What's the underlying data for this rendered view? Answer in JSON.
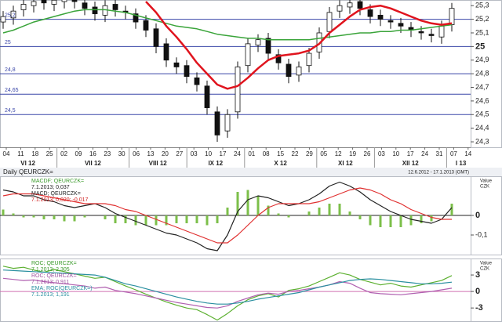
{
  "header": {
    "title": "Daily QEURCZK=",
    "range": "12.6.2012 - 17.1.2013 (GMT)"
  },
  "chart_data": [
    {
      "type": "candlestick",
      "ylim": [
        24.26,
        25.33
      ],
      "yticks": [
        {
          "value": 25.3,
          "label": "25,3"
        },
        {
          "value": 25.2,
          "label": "25,2"
        },
        {
          "value": 25.1,
          "label": "25,1"
        },
        25,
        {
          "value": 24.9,
          "label": "24,9"
        },
        {
          "value": 24.8,
          "label": "24,8"
        },
        {
          "value": 24.7,
          "label": "24,7"
        },
        {
          "value": 24.6,
          "label": "24,6"
        },
        {
          "value": 24.5,
          "label": "24,5"
        },
        {
          "value": 24.4,
          "label": "24,4"
        },
        {
          "value": 24.3,
          "label": "24,3"
        }
      ],
      "hlines": [
        {
          "value": 25.2,
          "label": "25,2"
        },
        25,
        {
          "value": 24.8,
          "label": "24,8"
        },
        {
          "value": 24.65,
          "label": "24,65"
        },
        {
          "value": 24.5,
          "label": "24,5"
        }
      ],
      "hline_color": "#3a46a8",
      "x_day_labels": [
        "04",
        "11",
        "18",
        "25",
        "02",
        "09",
        "16",
        "23",
        "30",
        "06",
        "13",
        "20",
        "27",
        "03",
        "10",
        "17",
        "24",
        "01",
        "08",
        "15",
        "22",
        "29",
        "05",
        "12",
        "19",
        "26",
        "03",
        "10",
        "17",
        "24",
        "31",
        "07",
        "14"
      ],
      "x_month_labels": [
        "VI 12",
        "VII 12",
        "VIII 12",
        "IX 12",
        "X 12",
        "XI 12",
        "XII 12",
        "I 13"
      ],
      "ohlc": [
        [
          25.18,
          25.26,
          25.13,
          25.22
        ],
        [
          25.21,
          25.3,
          25.16,
          25.26
        ],
        [
          25.27,
          25.35,
          25.22,
          25.31
        ],
        [
          25.3,
          25.37,
          25.25,
          25.33
        ],
        [
          25.34,
          25.38,
          25.27,
          25.32
        ],
        [
          25.31,
          25.38,
          25.26,
          25.34
        ],
        [
          25.33,
          25.39,
          25.28,
          25.35
        ],
        [
          25.36,
          25.4,
          25.28,
          25.33
        ],
        [
          25.32,
          25.36,
          25.23,
          25.28
        ],
        [
          25.29,
          25.33,
          25.19,
          25.24
        ],
        [
          25.23,
          25.34,
          25.18,
          25.3
        ],
        [
          25.31,
          25.35,
          25.22,
          25.27
        ],
        [
          25.26,
          25.3,
          25.2,
          25.25
        ],
        [
          25.24,
          25.28,
          25.13,
          25.18
        ],
        [
          25.19,
          25.23,
          25.07,
          25.12
        ],
        [
          25.13,
          25.17,
          24.95,
          25.0
        ],
        [
          25.02,
          25.06,
          24.85,
          24.9
        ],
        [
          24.88,
          24.92,
          24.8,
          24.85
        ],
        [
          24.86,
          24.9,
          24.73,
          24.78
        ],
        [
          24.77,
          24.81,
          24.67,
          24.72
        ],
        [
          24.71,
          24.75,
          24.5,
          24.55
        ],
        [
          24.52,
          24.56,
          24.3,
          24.35
        ],
        [
          24.38,
          24.54,
          24.33,
          24.5
        ],
        [
          24.52,
          24.89,
          24.47,
          24.85
        ],
        [
          24.86,
          25.06,
          24.81,
          25.02
        ],
        [
          25.01,
          25.09,
          24.96,
          25.05
        ],
        [
          25.06,
          25.1,
          24.9,
          24.95
        ],
        [
          24.94,
          24.98,
          24.83,
          24.88
        ],
        [
          24.87,
          24.91,
          24.73,
          24.78
        ],
        [
          24.79,
          24.89,
          24.74,
          24.85
        ],
        [
          24.86,
          24.99,
          24.81,
          24.95
        ],
        [
          24.96,
          25.14,
          24.91,
          25.1
        ],
        [
          25.11,
          25.29,
          25.06,
          25.25
        ],
        [
          25.26,
          25.34,
          25.21,
          25.3
        ],
        [
          25.29,
          25.36,
          25.24,
          25.32
        ],
        [
          25.33,
          25.37,
          25.23,
          25.28
        ],
        [
          25.27,
          25.31,
          25.17,
          25.22
        ],
        [
          25.23,
          25.27,
          25.15,
          25.2
        ],
        [
          25.19,
          25.23,
          25.13,
          25.18
        ],
        [
          25.17,
          25.21,
          25.1,
          25.15
        ],
        [
          25.14,
          25.18,
          25.07,
          25.12
        ],
        [
          25.11,
          25.15,
          25.05,
          25.1
        ],
        [
          25.09,
          25.13,
          25.03,
          25.08
        ],
        [
          25.07,
          25.19,
          25.02,
          25.15
        ],
        [
          25.16,
          25.32,
          25.11,
          25.28
        ]
      ],
      "up_color": "#ffffff",
      "down_color": "#111111",
      "series": [
        {
          "color": "#3aa43a",
          "values": [
            25.1,
            25.12,
            25.15,
            25.18,
            25.2,
            25.22,
            25.24,
            25.26,
            25.27,
            25.27,
            25.27,
            25.26,
            25.25,
            25.23,
            25.21,
            25.19,
            25.17,
            25.15,
            25.14,
            25.13,
            25.11,
            25.09,
            25.08,
            25.07,
            25.06,
            25.06,
            25.05,
            25.05,
            25.05,
            25.05,
            25.05,
            25.06,
            25.07,
            25.08,
            25.09,
            25.1,
            25.1,
            25.11,
            25.11,
            25.12,
            25.12,
            25.13,
            25.14,
            25.15,
            25.16
          ]
        },
        {
          "color": "#e0141e",
          "values": [
            null,
            null,
            null,
            null,
            null,
            null,
            null,
            null,
            null,
            null,
            null,
            null,
            null,
            null,
            25.33,
            25.25,
            25.15,
            25.07,
            24.98,
            24.88,
            24.8,
            24.72,
            24.69,
            24.71,
            24.77,
            24.84,
            24.9,
            24.93,
            24.94,
            24.95,
            24.97,
            25.02,
            25.1,
            25.16,
            25.22,
            25.27,
            25.29,
            25.3,
            25.28,
            25.25,
            25.22,
            25.19,
            25.17,
            25.16,
            25.17
          ]
        }
      ]
    },
    {
      "type": "line",
      "ylim": [
        -0.2,
        0.2
      ],
      "yticks": [
        0,
        {
          "value": -0.1,
          "label": "-0,1"
        }
      ],
      "zero_line_color": "#222222",
      "axis_unit": [
        "Value",
        "CZK"
      ],
      "legend": [
        {
          "text": "MACDF; QEURCZK=",
          "color": "#3a9a2a"
        },
        {
          "text": "7.1.2013; 0,037",
          "color": "#222222"
        },
        {
          "text": "MACD; QEURCZK=",
          "color": "#222222"
        },
        {
          "text": "7.1.2013; 0,020; -0,017",
          "color": "#d02020"
        }
      ],
      "series": [
        {
          "color": "#7cbf4a",
          "style": "bar",
          "values": [
            0.03,
            0.01,
            -0.01,
            -0.01,
            -0.02,
            -0.02,
            -0.03,
            -0.03,
            -0.01,
            0,
            -0.02,
            -0.04,
            -0.04,
            -0.05,
            -0.05,
            -0.05,
            -0.05,
            -0.04,
            -0.04,
            -0.04,
            -0.05,
            -0.04,
            0.04,
            0.12,
            0.13,
            0.1,
            0.05,
            0.01,
            -0.01,
            0,
            0.02,
            0.04,
            0.06,
            0.06,
            0.02,
            -0.02,
            -0.05,
            -0.06,
            -0.06,
            -0.06,
            -0.05,
            -0.04,
            -0.03,
            0,
            0.06
          ]
        },
        {
          "color": "#222222",
          "values": [
            0.13,
            0.12,
            0.1,
            0.1,
            0.08,
            0.07,
            0.05,
            0.04,
            0.05,
            0.06,
            0.04,
            0.01,
            -0.01,
            -0.03,
            -0.05,
            -0.07,
            -0.09,
            -0.1,
            -0.12,
            -0.14,
            -0.17,
            -0.18,
            -0.1,
            0.02,
            0.08,
            0.1,
            0.09,
            0.07,
            0.05,
            0.06,
            0.08,
            0.11,
            0.15,
            0.17,
            0.15,
            0.12,
            0.08,
            0.05,
            0.02,
            0,
            -0.02,
            -0.03,
            -0.04,
            -0.02,
            0.04
          ]
        },
        {
          "color": "#e03030",
          "values": [
            0.1,
            0.11,
            0.11,
            0.11,
            0.1,
            0.09,
            0.08,
            0.07,
            0.06,
            0.06,
            0.06,
            0.05,
            0.03,
            0.02,
            0,
            -0.02,
            -0.04,
            -0.06,
            -0.08,
            -0.1,
            -0.12,
            -0.14,
            -0.14,
            -0.1,
            -0.05,
            0,
            0.04,
            0.06,
            0.06,
            0.06,
            0.06,
            0.07,
            0.09,
            0.11,
            0.13,
            0.14,
            0.13,
            0.11,
            0.08,
            0.06,
            0.03,
            0.01,
            -0.01,
            -0.02,
            -0.02
          ]
        }
      ]
    },
    {
      "type": "line",
      "ylim": [
        -5.4,
        6
      ],
      "yticks": [
        3,
        0,
        -3
      ],
      "zero_line_color": "#d070b0",
      "axis_unit": [
        "Value",
        "CZK"
      ],
      "legend": [
        {
          "text": "ROC; QEURCZK=",
          "color": "#3a9a2a"
        },
        {
          "text": "7.1.2013; 2,305",
          "color": "#3a9a2a"
        },
        {
          "text": "ROC; QEURCZK=",
          "color": "#a050a0"
        },
        {
          "text": "7.1.2013; 0,911",
          "color": "#a050a0"
        },
        {
          "text": "EMA; ROC(QEURCZK=)",
          "color": "#2a8fa0"
        },
        {
          "text": "7.1.2013; 1,191",
          "color": "#2a8fa0"
        }
      ],
      "series": [
        {
          "color": "#5cb030",
          "values": [
            4.6,
            4.2,
            4.4,
            3.9,
            3.5,
            4.0,
            3.6,
            3.2,
            2.8,
            2.4,
            2.6,
            1.8,
            1.0,
            0.3,
            -0.5,
            -1.2,
            -1.9,
            -2.5,
            -3.0,
            -3.3,
            -4.2,
            -5.2,
            -4.0,
            -2.6,
            -1.5,
            -0.8,
            -0.4,
            -1.0,
            0.2,
            0.5,
            1.0,
            1.8,
            2.6,
            3.4,
            3.0,
            2.2,
            1.7,
            1.2,
            1.5,
            1.0,
            0.8,
            1.2,
            1.6,
            2.0,
            2.9
          ]
        },
        {
          "color": "#b060b0",
          "values": [
            2.4,
            2.2,
            2.0,
            2.1,
            1.8,
            1.6,
            1.4,
            1.2,
            1.0,
            0.6,
            0.8,
            0.2,
            -0.1,
            -0.4,
            -0.8,
            -1.2,
            -1.6,
            -2.0,
            -2.3,
            -2.6,
            -2.9,
            -3.0,
            -2.6,
            -1.8,
            -1.2,
            -0.6,
            -0.3,
            -0.5,
            0,
            0.2,
            0.5,
            0.8,
            1.2,
            1.8,
            1.5,
            0.6,
            -0.2,
            -0.4,
            -0.5,
            -0.6,
            -0.4,
            -0.2,
            0,
            0.3,
            0.6
          ]
        },
        {
          "color": "#2a8fa0",
          "values": [
            3.9,
            3.8,
            3.7,
            3.6,
            3.5,
            3.4,
            3.3,
            3.2,
            3.1,
            3.0,
            2.6,
            2.0,
            1.4,
            1.0,
            0.5,
            0,
            -0.5,
            -1.0,
            -1.4,
            -1.8,
            -2.1,
            -2.3,
            -2.3,
            -2.1,
            -1.8,
            -1.4,
            -1.1,
            -0.8,
            -0.5,
            -0.2,
            0.3,
            0.8,
            1.2,
            1.6,
            2.0,
            2.2,
            2.3,
            2.2,
            2.0,
            1.8,
            1.6,
            1.4,
            1.4,
            1.5,
            1.7
          ]
        }
      ]
    }
  ]
}
